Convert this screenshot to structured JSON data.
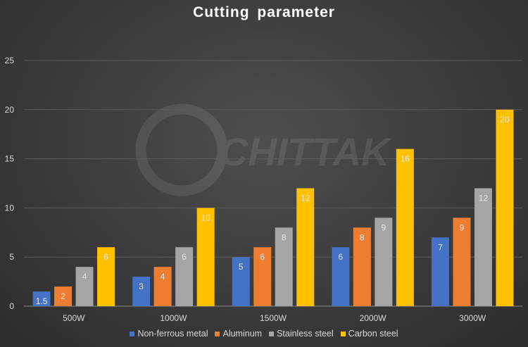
{
  "chart_data": {
    "type": "bar",
    "title": "Cutting  parameter",
    "categories": [
      "500W",
      "1000W",
      "1500W",
      "2000W",
      "3000W"
    ],
    "series": [
      {
        "name": "Non-ferrous metal",
        "color": "#4472c4",
        "values": [
          1.5,
          3,
          5,
          6,
          7
        ],
        "labels": [
          "1.5",
          "3",
          "5",
          "6",
          "7"
        ]
      },
      {
        "name": "Aluminum",
        "color": "#ed7d31",
        "values": [
          2,
          4,
          6,
          8,
          9
        ],
        "labels": [
          "2",
          "4",
          "6",
          "8",
          "9"
        ]
      },
      {
        "name": "Stainless steel",
        "color": "#a5a5a5",
        "values": [
          4,
          6,
          8,
          9,
          12
        ],
        "labels": [
          "4",
          "6",
          "8",
          "9",
          "12"
        ]
      },
      {
        "name": "Carbon steel",
        "color": "#ffc000",
        "values": [
          6,
          10,
          12,
          16,
          20
        ],
        "labels": [
          "6",
          "10",
          "12",
          "16",
          "20"
        ]
      }
    ],
    "xlabel": "",
    "ylabel": "",
    "ylim": [
      0,
      25
    ],
    "yticks": [
      "0",
      "5",
      "10",
      "15",
      "20",
      "25"
    ],
    "grid": true,
    "legend_position": "bottom"
  },
  "watermark": {
    "text": "CHITTAK",
    "icon": "chittak-logo-icon"
  }
}
